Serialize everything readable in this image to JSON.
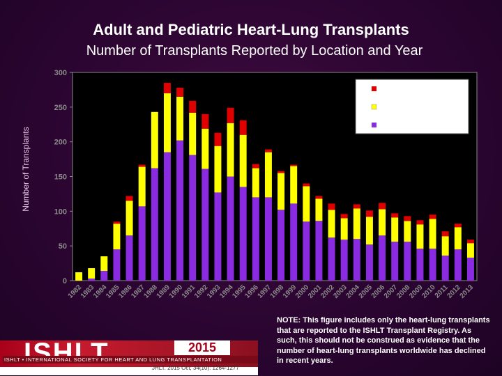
{
  "header": {
    "title": "Adult and Pediatric Heart-Lung Transplants",
    "subtitle": "Number of Transplants Reported by Location and Year"
  },
  "note": "NOTE: This figure includes only the heart-lung transplants that are reported to the ISHLT Transplant Registry. As such, this should not be construed as evidence that the number of heart-lung transplants worldwide has declined in recent years.",
  "logo": {
    "name": "ISHLT",
    "tagline": "ISHLT • INTERNATIONAL SOCIETY FOR HEART AND LUNG TRANSPLANTATION",
    "year": "2015",
    "citation": "JHLT. 2015 Oct; 34(10): 1264-1277"
  },
  "colors": {
    "purple": "#8a2be2",
    "yellow": "#ffff00",
    "red": "#e00000",
    "plot_bg": "#000000"
  },
  "chart_data": {
    "type": "bar",
    "stacked": true,
    "ylabel": "Number of Transplants",
    "xlabel": "",
    "ylim": [
      0,
      300
    ],
    "yticks": [
      0,
      50,
      100,
      150,
      200,
      250,
      300
    ],
    "grid": false,
    "legend_placement": "top-right",
    "categories": [
      "1982",
      "1983",
      "1984",
      "1985",
      "1986",
      "1987",
      "1988",
      "1989",
      "1990",
      "1991",
      "1992",
      "1993",
      "1994",
      "1995",
      "1996",
      "1997",
      "1998",
      "1999",
      "2000",
      "2001",
      "2002",
      "2003",
      "2004",
      "2005",
      "2006",
      "2007",
      "2008",
      "2009",
      "2010",
      "2011",
      "2012",
      "2013"
    ],
    "series": [
      {
        "color": "#8a2be2",
        "values": [
          0,
          3,
          14,
          45,
          65,
          107,
          162,
          185,
          202,
          181,
          161,
          127,
          150,
          135,
          120,
          120,
          102,
          111,
          85,
          86,
          62,
          59,
          60,
          52,
          65,
          56,
          56,
          46,
          46,
          36,
          45,
          33
        ]
      },
      {
        "color": "#ffff00",
        "values": [
          12,
          15,
          21,
          37,
          50,
          57,
          81,
          85,
          63,
          61,
          58,
          67,
          77,
          75,
          42,
          65,
          53,
          54,
          51,
          32,
          40,
          31,
          44,
          40,
          38,
          35,
          30,
          35,
          43,
          28,
          32,
          21
        ]
      },
      {
        "color": "#e00000",
        "values": [
          0,
          0,
          0,
          3,
          7,
          3,
          0,
          15,
          13,
          17,
          21,
          19,
          22,
          21,
          6,
          4,
          3,
          2,
          4,
          4,
          9,
          6,
          6,
          9,
          9,
          6,
          7,
          6,
          6,
          7,
          5,
          5
        ]
      }
    ]
  }
}
